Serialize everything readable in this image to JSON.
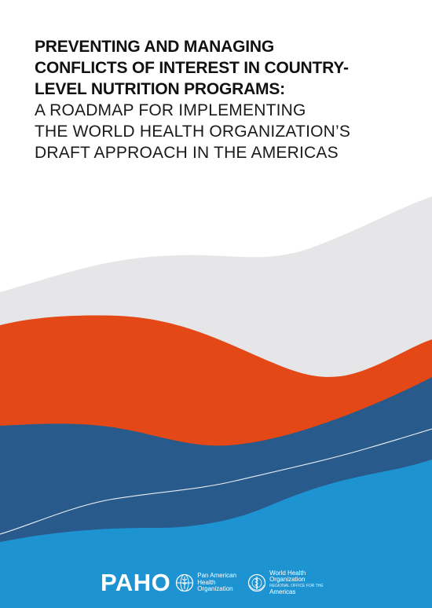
{
  "title": {
    "bold_lines": [
      "PREVENTING AND MANAGING",
      "CONFLICTS OF INTEREST IN COUNTRY-",
      "LEVEL NUTRITION PROGRAMS:"
    ],
    "light_lines": [
      "A ROADMAP FOR IMPLEMENTING",
      "THE WORLD HEALTH ORGANIZATION’S",
      "DRAFT APPROACH IN THE AMERICAS"
    ]
  },
  "colors": {
    "gray": "#e6e6e8",
    "orange": "#e34816",
    "navy": "#285a8c",
    "blue": "#1d93d2",
    "text": "#111111"
  },
  "logos": {
    "paho_wordmark": "PAHO",
    "paho_emblem_icon": "paho-globe-emblem-icon",
    "paho_name_lines": [
      "Pan American",
      "Health",
      "Organization"
    ],
    "who_emblem_icon": "who-emblem-icon",
    "who_name_lines": [
      "World Health",
      "Organization"
    ],
    "who_sub_line": "REGIONAL OFFICE FOR THE",
    "who_region": "Americas"
  }
}
